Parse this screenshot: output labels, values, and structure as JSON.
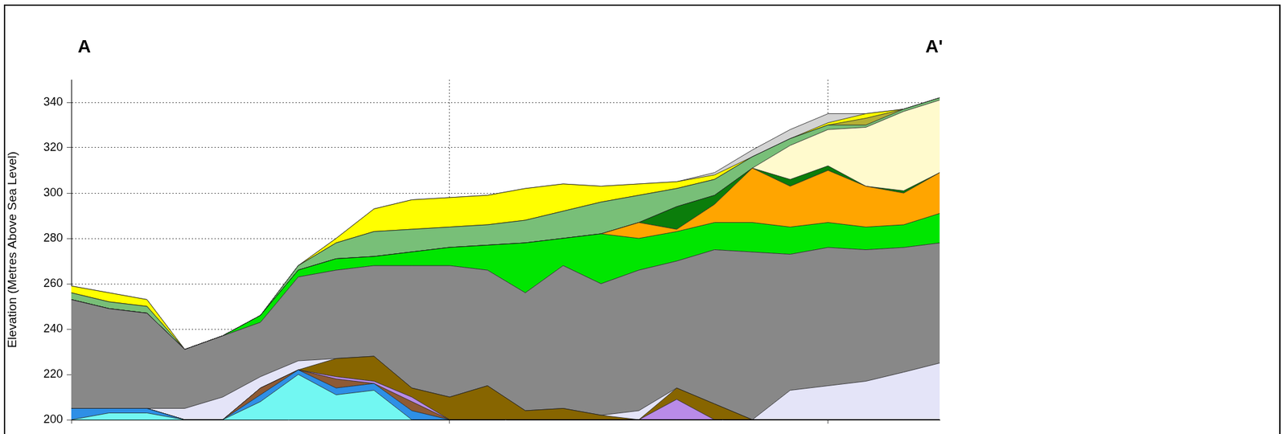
{
  "chart_data": {
    "type": "area",
    "stacked": false,
    "ylabel": "Elevation (Metres Above Sea Level)",
    "annotations": [
      "A",
      "A'"
    ],
    "x": [
      0,
      1,
      2,
      3,
      4,
      5,
      6,
      7,
      8,
      9,
      10,
      11,
      12,
      13,
      14,
      15,
      16,
      17,
      18,
      19,
      20,
      21,
      22,
      22.95
    ],
    "xlim": [
      0,
      22.95
    ],
    "xticks": [
      0,
      10,
      20
    ],
    "ylim": [
      200,
      350
    ],
    "yticks": [
      200,
      220,
      240,
      260,
      280,
      300,
      320,
      340
    ],
    "grid": true,
    "tick_labels": "y",
    "series": [
      {
        "color": "#72f7f2",
        "values": [
          200,
          203,
          203,
          200,
          200,
          208,
          220,
          211,
          213,
          200,
          200,
          200,
          200,
          200,
          200,
          200,
          200,
          200,
          200,
          200,
          200,
          200,
          200,
          200
        ]
      },
      {
        "color": "#2e8fe6",
        "values": [
          205,
          205,
          205,
          200,
          200,
          211,
          222,
          214,
          216,
          204,
          200,
          200,
          200,
          200,
          200,
          200,
          200,
          200,
          200,
          200,
          200,
          200,
          200,
          200
        ]
      },
      {
        "color": "#8e5a34",
        "values": [
          205,
          205,
          205,
          200,
          200,
          214,
          222,
          218,
          216,
          208,
          200,
          200,
          200,
          200,
          200,
          200,
          200,
          200,
          200,
          200,
          200,
          200,
          200,
          200
        ]
      },
      {
        "color": "#b98be8",
        "values": [
          205,
          205,
          205,
          200,
          200,
          214,
          222,
          219,
          217,
          210,
          200,
          200,
          200,
          200,
          200,
          200,
          209,
          200,
          200,
          200,
          200,
          200,
          200,
          200
        ]
      },
      {
        "color": "#876500",
        "values": [
          205,
          205,
          205,
          200,
          200,
          214,
          222,
          227,
          228,
          214,
          210,
          215,
          204,
          205,
          202,
          200,
          214,
          207,
          200,
          200,
          200,
          200,
          200,
          200
        ]
      },
      {
        "color": "#e4e4f8",
        "values": [
          205,
          205,
          205,
          205,
          210,
          219,
          226,
          227,
          228,
          214,
          210,
          215,
          204,
          205,
          202,
          204,
          214,
          207,
          200,
          213,
          215,
          217,
          221,
          225
        ]
      },
      {
        "color": "#888888",
        "values": [
          253,
          249,
          247,
          231,
          237,
          243,
          263,
          266,
          268,
          268,
          268,
          266,
          256,
          268,
          260,
          266,
          270,
          275,
          274,
          273,
          276,
          275,
          276,
          278
        ]
      },
      {
        "color": "#00e600",
        "values": [
          253,
          249,
          247,
          231,
          237,
          246,
          266,
          271,
          272,
          274,
          276,
          277,
          278,
          280,
          282,
          280,
          283,
          287,
          287,
          285,
          287,
          285,
          286,
          291
        ]
      },
      {
        "color": "#ffa500",
        "values": [
          253,
          249,
          247,
          231,
          237,
          246,
          266,
          271,
          272,
          274,
          276,
          277,
          278,
          280,
          282,
          287,
          284,
          295,
          311,
          303,
          310,
          303,
          300,
          309
        ]
      },
      {
        "color": "#0b7d0b",
        "values": [
          253,
          249,
          247,
          231,
          237,
          246,
          266,
          271,
          272,
          274,
          276,
          277,
          278,
          280,
          282,
          287,
          294,
          299,
          311,
          306,
          312,
          303,
          301,
          309
        ]
      },
      {
        "color": "#fffacd",
        "values": [
          253,
          249,
          247,
          231,
          237,
          246,
          266,
          271,
          272,
          274,
          276,
          277,
          278,
          280,
          282,
          287,
          294,
          299,
          311,
          321,
          328,
          329,
          336,
          341
        ]
      },
      {
        "color": "#78bf78",
        "values": [
          256,
          252,
          250,
          231,
          237,
          246,
          268,
          278,
          283,
          284,
          285,
          286,
          288,
          292,
          296,
          299,
          302,
          306,
          316,
          324,
          330,
          330,
          337,
          342
        ]
      },
      {
        "color": "#b5b035",
        "values": [
          256,
          252,
          250,
          231,
          237,
          246,
          268,
          278,
          283,
          284,
          285,
          286,
          288,
          292,
          296,
          299,
          302,
          306,
          316,
          324,
          330,
          333,
          337,
          342
        ]
      },
      {
        "color": "#ffff00",
        "values": [
          259,
          256,
          253,
          231,
          237,
          246,
          268,
          280,
          293,
          297,
          298,
          299,
          302,
          304,
          303,
          304,
          305,
          308,
          316,
          324,
          331,
          335,
          337,
          342
        ]
      },
      {
        "color": "#d3d3d3",
        "values": [
          259,
          256,
          253,
          231,
          237,
          246,
          268,
          280,
          293,
          297,
          298,
          299,
          302,
          304,
          303,
          304,
          305,
          309,
          319,
          328,
          335,
          335,
          337,
          342
        ]
      }
    ]
  }
}
